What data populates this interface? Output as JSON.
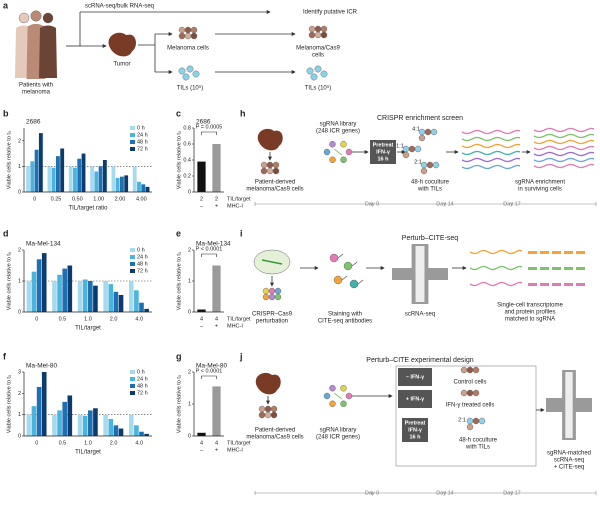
{
  "panel_labels": [
    "a",
    "b",
    "c",
    "d",
    "e",
    "f",
    "g",
    "h",
    "i",
    "j"
  ],
  "a": {
    "patients": [
      "Patients with",
      "melanoma"
    ],
    "seq": "scRNA-seq/bulk RNA-seq",
    "tumor": "Tumor",
    "melanoma": "Melanoma cells",
    "tils": "TILs (10⁵)",
    "identify": "Identify putative ICR",
    "melanoma_cas9": "Melanoma/Cas9",
    "melanoma_cas9_2": "cells",
    "tils2": "TILs (10⁵)"
  },
  "chart_data": [
    {
      "type": "bar",
      "title": "2686",
      "ylabel": "Viable cells relative to t₀",
      "xlabel": "TIL/target ratio",
      "categories": [
        "0",
        "0.25",
        "0.50",
        "1.00",
        "2.00",
        "4.00"
      ],
      "series": [
        {
          "name": "0 h",
          "color": "#a6dbef",
          "values": [
            1.0,
            1.0,
            1.0,
            1.0,
            1.0,
            1.0
          ]
        },
        {
          "name": "24 h",
          "color": "#4bb3de",
          "values": [
            1.2,
            0.95,
            0.95,
            0.8,
            0.55,
            0.4
          ]
        },
        {
          "name": "48 h",
          "color": "#1f70b0",
          "values": [
            1.65,
            1.4,
            1.3,
            1.0,
            0.6,
            0.3
          ]
        },
        {
          "name": "72 h",
          "color": "#0c3b70",
          "values": [
            2.3,
            1.7,
            1.5,
            1.25,
            0.65,
            0.2
          ]
        }
      ],
      "refline": 1,
      "legend": "top-right",
      "ylim": [
        0,
        2.5
      ],
      "yticks": [
        0,
        1,
        2
      ]
    },
    {
      "type": "bar",
      "title": "2686",
      "ylabel": "Viable cells relative to t₀",
      "categories": [
        "2",
        "2"
      ],
      "categories2": [
        "–",
        "+"
      ],
      "category_label": "TIL/target",
      "category2_label": "MHC-I",
      "values": [
        0.38,
        0.6
      ],
      "colors": [
        "#111111",
        "#9a9a9a"
      ],
      "annotation": "P = 0.0005",
      "ylim": [
        0,
        0.8
      ],
      "yticks": [
        0,
        0.2,
        0.4,
        0.6,
        0.8
      ]
    },
    {
      "type": "bar",
      "title": "Ma-Mel-134",
      "ylabel": "Viable cells relative to t₀",
      "xlabel": "TIL/target",
      "categories": [
        "0",
        "0.5",
        "1.0",
        "2.0",
        "4.0"
      ],
      "series": [
        {
          "name": "0 h",
          "color": "#a6dbef",
          "values": [
            1.0,
            1.0,
            1.0,
            1.0,
            1.0
          ]
        },
        {
          "name": "24 h",
          "color": "#4bb3de",
          "values": [
            1.3,
            1.2,
            1.05,
            0.9,
            0.7
          ]
        },
        {
          "name": "48 h",
          "color": "#1f70b0",
          "values": [
            1.7,
            1.4,
            1.0,
            0.65,
            0.3
          ]
        },
        {
          "name": "72 h",
          "color": "#0c3b70",
          "values": [
            1.9,
            1.5,
            0.85,
            0.55,
            0.1
          ]
        }
      ],
      "refline": 1,
      "legend": "top-right",
      "ylim": [
        0,
        2
      ],
      "yticks": [
        0,
        1,
        2
      ]
    },
    {
      "type": "bar",
      "title": "Ma-Mel-134",
      "ylabel": "Viable cells relative to t₀",
      "categories": [
        "4",
        "4"
      ],
      "categories2": [
        "–",
        "+"
      ],
      "category_label": "TIL/target",
      "category2_label": "MHC-I",
      "values": [
        0.08,
        1.5
      ],
      "colors": [
        "#111111",
        "#9a9a9a"
      ],
      "annotation": "P < 0.0001",
      "ylim": [
        0,
        2
      ],
      "yticks": [
        0,
        1,
        2
      ]
    },
    {
      "type": "bar",
      "title": "Ma-Mel-80",
      "ylabel": "Viable cells relative to t₀",
      "xlabel": "TIL/target",
      "categories": [
        "0",
        "0.5",
        "1.0",
        "2.0",
        "4.0"
      ],
      "series": [
        {
          "name": "0 h",
          "color": "#a6dbef",
          "values": [
            1.0,
            1.0,
            1.0,
            1.0,
            1.0
          ]
        },
        {
          "name": "24 h",
          "color": "#4bb3de",
          "values": [
            1.4,
            1.2,
            0.95,
            0.8,
            0.5
          ]
        },
        {
          "name": "48 h",
          "color": "#1f70b0",
          "values": [
            2.3,
            1.6,
            1.2,
            0.5,
            0.2
          ]
        },
        {
          "name": "72 h",
          "color": "#0c3b70",
          "values": [
            3.0,
            1.9,
            1.3,
            0.35,
            0.1
          ]
        }
      ],
      "refline": 1,
      "legend": "top-right",
      "ylim": [
        0,
        3
      ],
      "yticks": [
        0,
        1,
        2,
        3
      ]
    },
    {
      "type": "bar",
      "title": "Ma-Mel-80",
      "ylabel": "Viable cells relative to t₀",
      "categories": [
        "4",
        "4"
      ],
      "categories2": [
        "–",
        "+"
      ],
      "category_label": "TIL/target",
      "category2_label": "MHC-I",
      "values": [
        0.1,
        1.55
      ],
      "colors": [
        "#111111",
        "#9a9a9a"
      ],
      "annotation": "P < 0.0001",
      "ylim": [
        0,
        2
      ],
      "yticks": [
        0,
        1,
        2
      ]
    }
  ],
  "h": {
    "title": "CRISPR enrichment screen",
    "cells": [
      "Patient-derived",
      "melanoma/Cas9 cells"
    ],
    "library": [
      "sgRNA library",
      "(248 ICR genes)"
    ],
    "pretreat": [
      "Pretreat",
      "IFN-γ",
      "16 h"
    ],
    "ratios": [
      "4:1",
      "1:1",
      "2:1"
    ],
    "coculture": [
      "48-h coculture",
      "with TILs"
    ],
    "enrichment": [
      "sgRNA enrichment",
      "in surviving cells"
    ],
    "days": [
      "Day 0",
      "Day 14",
      "Day 17"
    ]
  },
  "i": {
    "title": "Perturb–CITE-seq",
    "perturb": [
      "CRISPR–Cas9",
      "perturbation"
    ],
    "staining": [
      "Staining with",
      "CITE-seq antibodies"
    ],
    "scrna": "scRNA-seq",
    "profiles": [
      "Single-cell transcriptome",
      "and protein profiles",
      "matched to sgRNA"
    ]
  },
  "j": {
    "title": "Perturb–CITE experimental design",
    "cells": [
      "Patient-derived",
      "melanoma/Cas9 cells"
    ],
    "library": [
      "sgRNA library",
      "(248 ICR genes)"
    ],
    "minus": "– IFN-γ",
    "control": "Control cells",
    "plus": "+ IFN-γ",
    "treated": "IFN-γ treated cells",
    "pretreat": [
      "Pretreat",
      "IFN-γ",
      "16 h"
    ],
    "ratio": "2:1",
    "coculture": [
      "48-h coculture",
      "with TILs"
    ],
    "result": [
      "sgRNA-matched",
      "scRNA-seq",
      "+ CITE-seq"
    ],
    "days": [
      "Day 0",
      "Day 14",
      "Day 17"
    ]
  }
}
